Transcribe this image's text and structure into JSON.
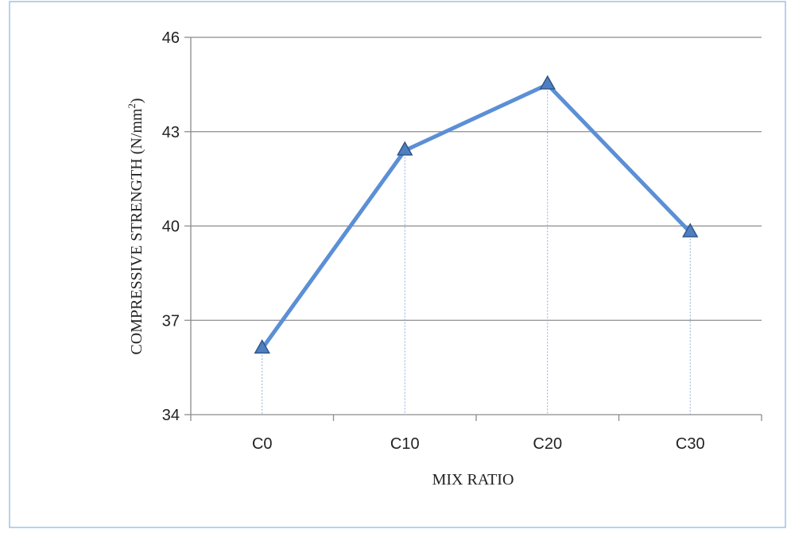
{
  "chart_data": {
    "type": "line",
    "categories": [
      "C0",
      "C10",
      "C20",
      "C30"
    ],
    "series": [
      {
        "values": [
          36.1,
          42.4,
          44.5,
          39.8
        ],
        "color": "#5b8fd6",
        "marker": "triangle"
      }
    ],
    "xlabel": "MIX RATIO",
    "ylabel_main": "COMPRESSIVE STRENGTH (N/mm",
    "ylabel_sup": "2",
    "ylabel_tail": ")",
    "ylim": [
      34,
      46
    ],
    "yticks": [
      34,
      37,
      40,
      43,
      46
    ],
    "grid": "horizontal",
    "drop_lines": true,
    "frame_color": "#9ec3e6"
  }
}
